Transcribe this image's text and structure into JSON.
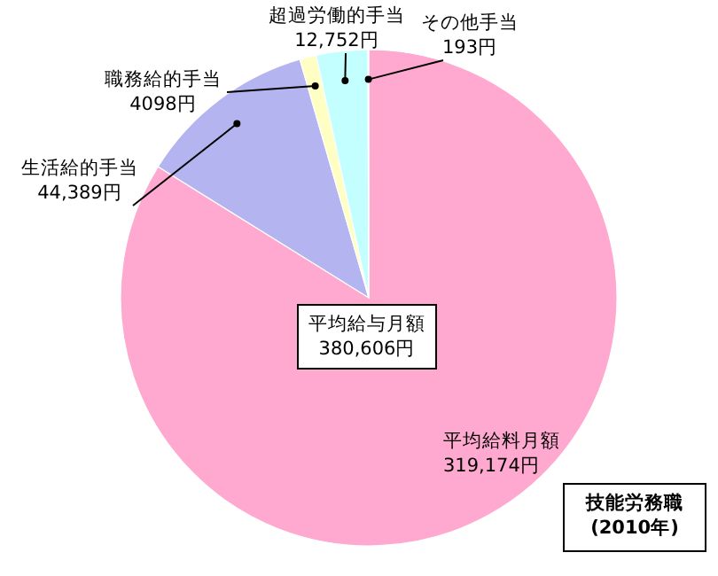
{
  "chart_data": {
    "type": "pie",
    "title": "技能労務職\n(2010年)",
    "categories": [
      "平均給料月額",
      "生活給的手当",
      "職務給的手当",
      "超過労働的手当",
      "その他手当"
    ],
    "values": [
      319174,
      44389,
      4098,
      12752,
      193
    ],
    "value_labels": [
      "319,174円",
      "44,389円",
      "4098円",
      "12,752円",
      "193円"
    ],
    "colors": [
      "#ffa8d0",
      "#b4b4f0",
      "#ffffc4",
      "#c4ffff",
      "#f0d0e0"
    ],
    "annotations": [
      "平均給与月額\n380,606円"
    ]
  }
}
